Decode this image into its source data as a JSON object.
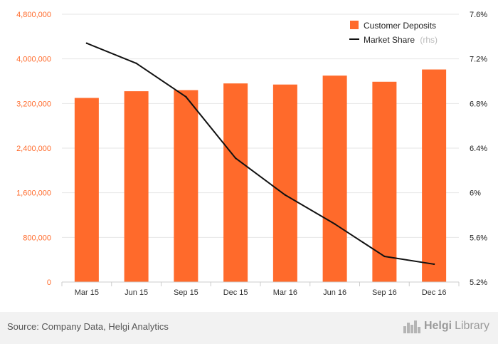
{
  "chart_data": {
    "type": "bar",
    "categories": [
      "Mar 15",
      "Jun 15",
      "Sep 15",
      "Dec 15",
      "Mar 16",
      "Jun 16",
      "Sep 16",
      "Dec 16"
    ],
    "series": [
      {
        "name": "Customer Deposits",
        "type": "bar",
        "axis": "left",
        "color": "#ff6a2b",
        "values": [
          3300000,
          3420000,
          3440000,
          3560000,
          3540000,
          3700000,
          3590000,
          3810000
        ]
      },
      {
        "name": "Market Share",
        "type": "line",
        "axis": "right",
        "color": "#111111",
        "values": [
          7.34,
          7.16,
          6.86,
          6.31,
          5.98,
          5.72,
          5.43,
          5.36
        ]
      }
    ],
    "left_axis": {
      "ylim": [
        0,
        4800000
      ],
      "ticks": [
        0,
        800000,
        1600000,
        2400000,
        3200000,
        4000000,
        4800000
      ],
      "tick_labels": [
        "0",
        "800,000",
        "1,600,000",
        "2,400,000",
        "3,200,000",
        "4,000,000",
        "4,800,000"
      ]
    },
    "right_axis": {
      "ylim": [
        5.2,
        7.6
      ],
      "ticks": [
        5.2,
        5.6,
        6.0,
        6.4,
        6.8,
        7.2,
        7.6
      ],
      "tick_labels": [
        "5.2%",
        "5.6%",
        "6%",
        "6.4%",
        "6.8%",
        "7.2%",
        "7.6%"
      ]
    },
    "legend": {
      "position": "top-right",
      "items": [
        {
          "label": "Customer Deposits",
          "note": ""
        },
        {
          "label": "Market Share",
          "note": "(rhs)"
        }
      ]
    },
    "grid": true
  },
  "footer": {
    "source": "Source: Company Data, Helgi Analytics",
    "brand_bold": "Helgi",
    "brand_light": "Library"
  }
}
